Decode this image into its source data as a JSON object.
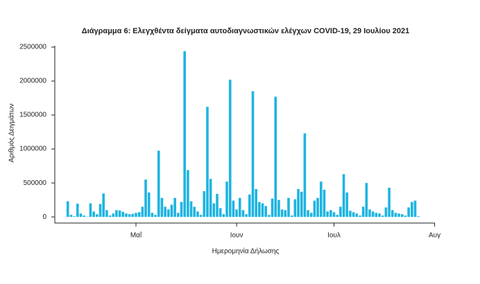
{
  "chart_data": {
    "type": "bar",
    "title": "Διάγραμμα 6: Ελεγχθέντα δείγματα αυτοδιαγνωστικών ελέγχων COVID-19, 29 Ιουλίου 2021",
    "x_label": "Ημερομηνία Δήλωσης",
    "y_label": "Αριθμός Δειγμάτων",
    "color": "#1eb4e0",
    "categories": [
      null,
      null,
      null,
      null,
      null,
      null,
      null,
      null,
      null,
      null,
      null,
      null,
      null,
      null,
      null,
      null,
      null,
      null,
      null,
      null,
      null,
      null,
      null,
      null,
      null,
      "Μαΐ",
      null,
      null,
      null,
      null,
      null,
      null,
      null,
      null,
      null,
      null,
      null,
      null,
      null,
      null,
      null,
      null,
      null,
      null,
      null,
      null,
      null,
      null,
      null,
      null,
      null,
      null,
      null,
      null,
      null,
      null,
      "Ιουν",
      null,
      null,
      null,
      null,
      null,
      null,
      null,
      null,
      null,
      null,
      null,
      null,
      null,
      null,
      null,
      null,
      null,
      null,
      null,
      null,
      null,
      null,
      null,
      null,
      null,
      null,
      null,
      null,
      null,
      "Ιουλ",
      null,
      null,
      null,
      null,
      null,
      null,
      null,
      null,
      null,
      null,
      null,
      null,
      null,
      null,
      null,
      null,
      null,
      null,
      null,
      null,
      null,
      null,
      null,
      null,
      null,
      null,
      null,
      null,
      null,
      null,
      "Αυγ"
    ],
    "values": [
      null,
      null,
      null,
      null,
      230000,
      30000,
      10000,
      195000,
      50000,
      20000,
      5000,
      200000,
      80000,
      40000,
      190000,
      345000,
      100000,
      20000,
      50000,
      100000,
      95000,
      75000,
      50000,
      40000,
      45000,
      60000,
      70000,
      150000,
      550000,
      360000,
      60000,
      30000,
      975000,
      280000,
      150000,
      110000,
      180000,
      280000,
      60000,
      220000,
      2440000,
      690000,
      230000,
      150000,
      80000,
      30000,
      380000,
      1620000,
      560000,
      200000,
      340000,
      130000,
      40000,
      520000,
      2020000,
      240000,
      110000,
      280000,
      100000,
      40000,
      330000,
      1850000,
      410000,
      220000,
      200000,
      160000,
      30000,
      270000,
      1770000,
      250000,
      110000,
      100000,
      280000,
      20000,
      260000,
      410000,
      370000,
      1230000,
      100000,
      60000,
      240000,
      280000,
      520000,
      400000,
      80000,
      100000,
      70000,
      30000,
      150000,
      630000,
      360000,
      90000,
      70000,
      50000,
      20000,
      150000,
      500000,
      110000,
      80000,
      60000,
      50000,
      20000,
      140000,
      430000,
      100000,
      60000,
      50000,
      40000,
      20000,
      140000,
      220000,
      240000,
      10000,
      null,
      null,
      null,
      null,
      null
    ],
    "ylim": [
      -90000,
      2520000
    ],
    "yticks": [
      0,
      500000,
      1000000,
      1500000,
      2000000,
      2500000
    ]
  }
}
